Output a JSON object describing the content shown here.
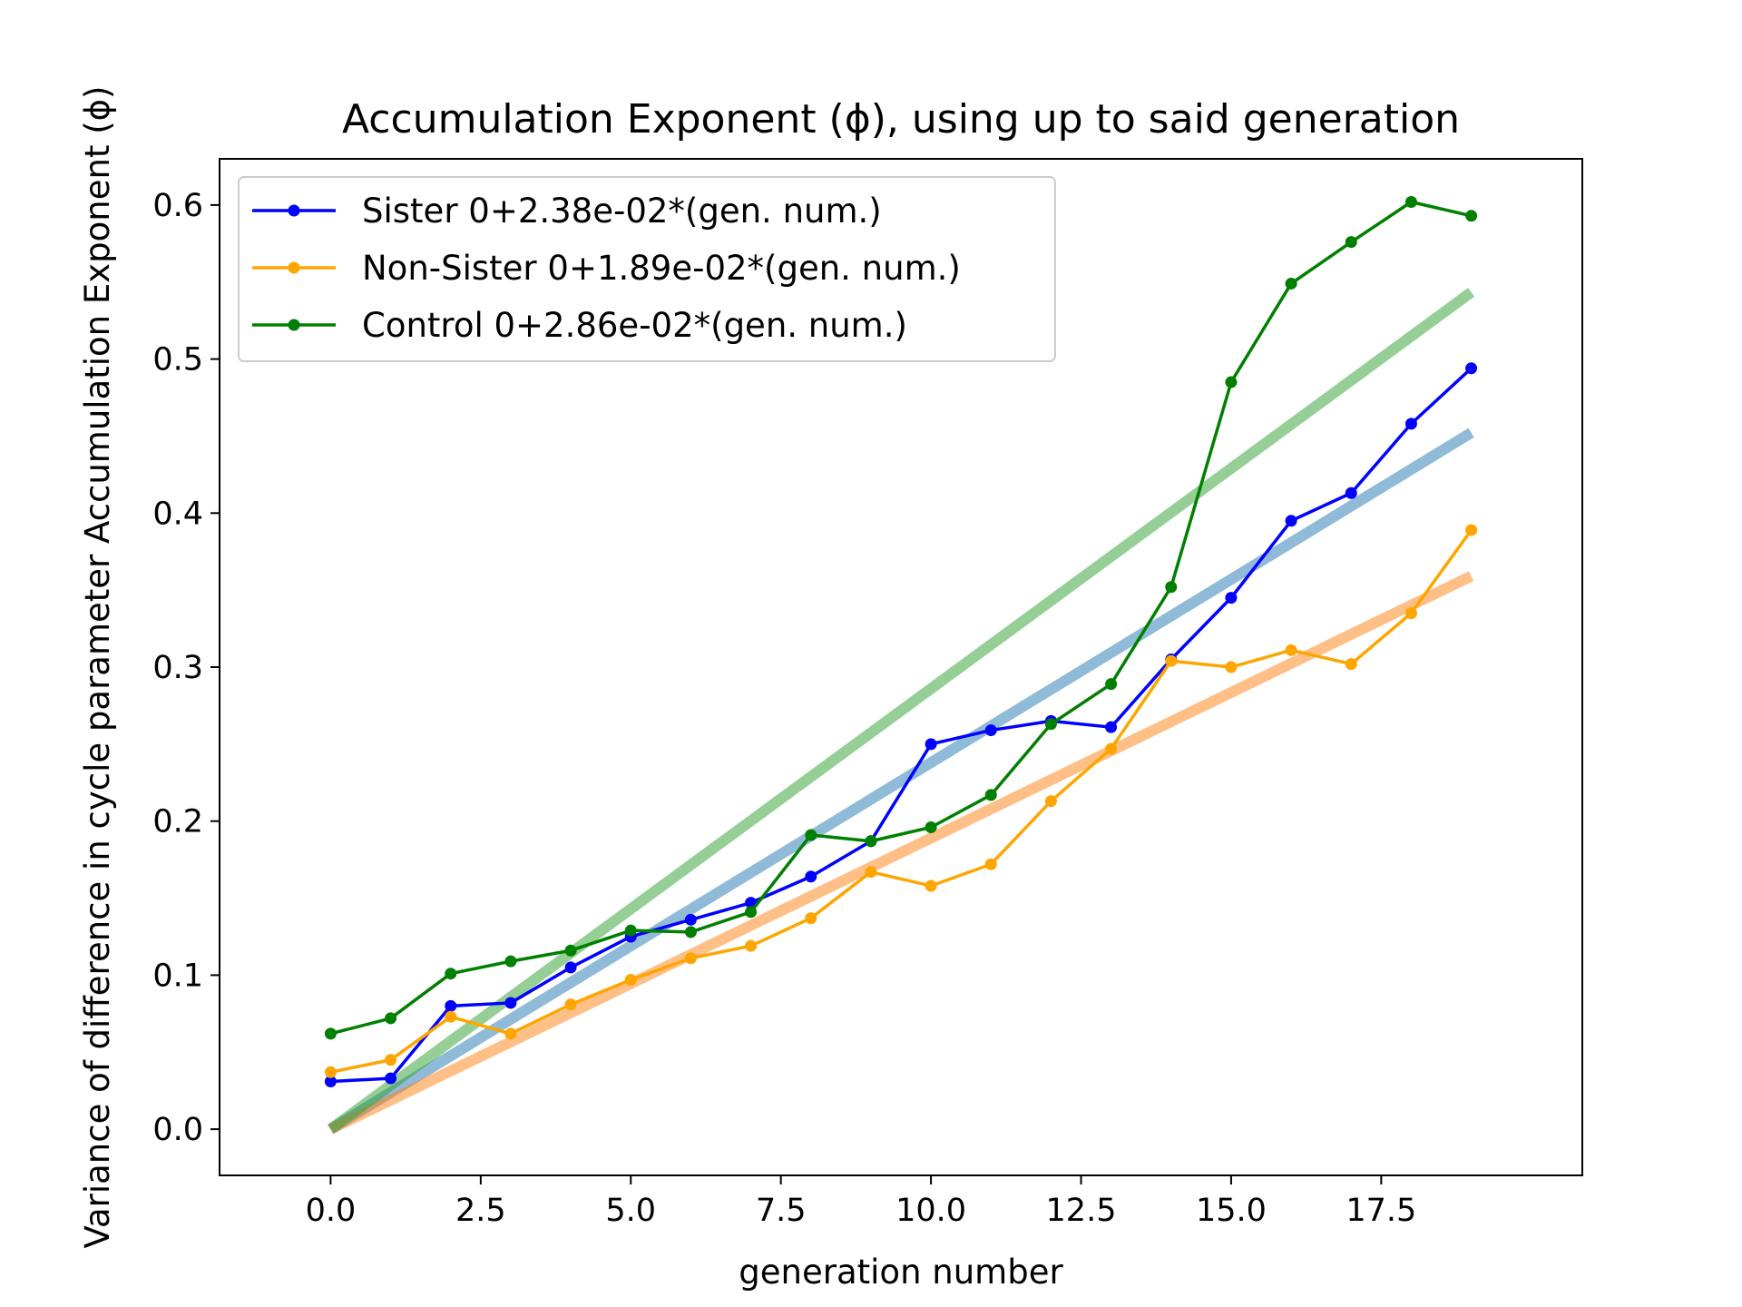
{
  "chart_data": {
    "type": "line",
    "title": "Accumulation Exponent (ϕ), using up to said generation",
    "xlabel": "generation number",
    "ylabel": "Variance of difference in cycle parameter Accumulation Exponent (ϕ)",
    "xlim": [
      -1.85,
      20.85
    ],
    "ylim": [
      -0.03,
      0.63
    ],
    "xticks": [
      0.0,
      2.5,
      5.0,
      7.5,
      10.0,
      12.5,
      15.0,
      17.5
    ],
    "xtick_labels": [
      "0.0",
      "2.5",
      "5.0",
      "7.5",
      "10.0",
      "12.5",
      "15.0",
      "17.5"
    ],
    "yticks": [
      0.0,
      0.1,
      0.2,
      0.3,
      0.4,
      0.5,
      0.6
    ],
    "ytick_labels": [
      "0.0",
      "0.1",
      "0.2",
      "0.3",
      "0.4",
      "0.5",
      "0.6"
    ],
    "grid": false,
    "legend_position": "upper-left",
    "x": [
      0,
      1,
      2,
      3,
      4,
      5,
      6,
      7,
      8,
      9,
      10,
      11,
      12,
      13,
      14,
      15,
      16,
      17,
      18,
      19
    ],
    "series": [
      {
        "name": "Sister 0+2.38e-02*(gen. num.)",
        "color": "#0000ff",
        "fit_color": "#1f77b4",
        "slope": 0.0238,
        "values": [
          0.031,
          0.033,
          0.08,
          0.082,
          0.105,
          0.125,
          0.136,
          0.147,
          0.164,
          0.187,
          0.25,
          0.259,
          0.265,
          0.261,
          0.305,
          0.345,
          0.395,
          0.413,
          0.458,
          0.494
        ]
      },
      {
        "name": "Non-Sister 0+1.89e-02*(gen. num.)",
        "color": "#ffa500",
        "fit_color": "#ff7f0e",
        "slope": 0.0189,
        "values": [
          0.037,
          0.045,
          0.073,
          0.062,
          0.081,
          0.097,
          0.111,
          0.119,
          0.137,
          0.167,
          0.158,
          0.172,
          0.213,
          0.247,
          0.304,
          0.3,
          0.311,
          0.302,
          0.335,
          0.389
        ]
      },
      {
        "name": "Control 0+2.86e-02*(gen. num.)",
        "color": "#008000",
        "fit_color": "#2ca02c",
        "slope": 0.0286,
        "values": [
          0.062,
          0.072,
          0.101,
          0.109,
          0.116,
          0.129,
          0.128,
          0.141,
          0.191,
          0.187,
          0.196,
          0.217,
          0.263,
          0.289,
          0.352,
          0.485,
          0.549,
          0.576,
          0.602,
          0.593
        ]
      }
    ]
  }
}
